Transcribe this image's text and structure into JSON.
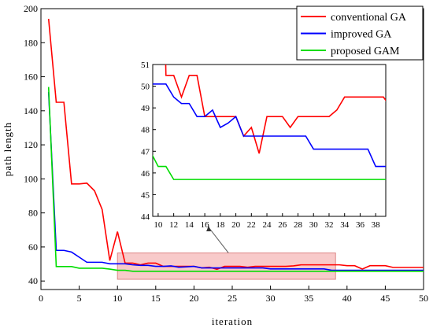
{
  "chart_data": [
    {
      "type": "line",
      "xlabel": "iteration",
      "ylabel": "path length",
      "xlim": [
        0,
        50
      ],
      "ylim": [
        35,
        200
      ],
      "xticks": [
        0,
        5,
        10,
        15,
        20,
        25,
        30,
        35,
        40,
        45,
        50
      ],
      "yticks": [
        40,
        60,
        80,
        100,
        120,
        140,
        160,
        180,
        200
      ],
      "legend": {
        "placement": "top-right",
        "entries": [
          "conventional GA",
          "improved GA",
          "proposed GAM"
        ]
      },
      "grid": false,
      "series": [
        {
          "name": "conventional GA",
          "color": "#ff0000",
          "x": [
            1,
            2,
            3,
            4,
            5,
            6,
            7,
            8,
            9,
            10,
            11,
            12,
            13,
            14,
            15,
            16,
            17,
            18,
            19,
            20,
            21,
            22,
            23,
            24,
            25,
            26,
            27,
            28,
            29,
            30,
            31,
            32,
            33,
            34,
            35,
            36,
            37,
            38,
            39,
            40,
            41,
            42,
            43,
            44,
            45,
            46,
            47,
            48,
            49,
            50
          ],
          "values": [
            194,
            145,
            145,
            97,
            97,
            97.5,
            93,
            82,
            52,
            69,
            50.5,
            50.5,
            49.5,
            50.5,
            50.5,
            48.6,
            48.6,
            48.6,
            48.6,
            48.6,
            47.7,
            48.1,
            46.9,
            48.6,
            48.6,
            48.6,
            48.1,
            48.6,
            48.6,
            48.6,
            48.6,
            48.6,
            48.9,
            49.5,
            49.5,
            49.5,
            49.5,
            49.5,
            49.5,
            49,
            49,
            47,
            49,
            49,
            49,
            48,
            48,
            48,
            48,
            48
          ]
        },
        {
          "name": "improved GA",
          "color": "#0000ff",
          "x": [
            1,
            2,
            3,
            4,
            5,
            6,
            7,
            8,
            9,
            10,
            11,
            12,
            13,
            14,
            15,
            16,
            17,
            18,
            19,
            20,
            21,
            22,
            23,
            24,
            25,
            26,
            27,
            28,
            29,
            30,
            31,
            32,
            33,
            34,
            35,
            36,
            37,
            38,
            39,
            40,
            41,
            42,
            43,
            44,
            45,
            46,
            47,
            48,
            49,
            50
          ],
          "values": [
            151,
            58,
            58,
            57,
            54,
            51,
            51,
            51,
            50.1,
            50.1,
            50.1,
            49.5,
            49.2,
            49.2,
            48.6,
            48.6,
            48.9,
            48.1,
            48.3,
            48.6,
            47.7,
            47.7,
            47.7,
            47.7,
            47.7,
            47.7,
            47.7,
            47.7,
            47.7,
            47.1,
            47.1,
            47.1,
            47.1,
            47.1,
            47.1,
            47.1,
            47.1,
            46.3,
            46.3,
            46.3,
            46.3,
            46.3,
            46.3,
            46.3,
            46.3,
            46.3,
            46.3,
            46.3,
            46.3,
            46.3
          ]
        },
        {
          "name": "proposed GAM",
          "color": "#00dd00",
          "x": [
            1,
            2,
            3,
            4,
            5,
            6,
            7,
            8,
            9,
            10,
            11,
            12,
            13,
            14,
            15,
            16,
            17,
            18,
            19,
            20,
            21,
            22,
            23,
            24,
            25,
            26,
            27,
            28,
            29,
            30,
            31,
            32,
            33,
            34,
            35,
            36,
            37,
            38,
            39,
            40,
            41,
            42,
            43,
            44,
            45,
            46,
            47,
            48,
            49,
            50
          ],
          "values": [
            154,
            48.5,
            48.5,
            48.5,
            47.5,
            47.5,
            47.5,
            47.5,
            47,
            46.3,
            46.3,
            45.7,
            45.7,
            45.7,
            45.7,
            45.7,
            45.7,
            45.7,
            45.7,
            45.7,
            45.7,
            45.7,
            45.7,
            45.7,
            45.7,
            45.7,
            45.7,
            45.7,
            45.7,
            45.7,
            45.7,
            45.7,
            45.7,
            45.7,
            45.7,
            45.7,
            45.7,
            45.7,
            45.7,
            45.7,
            45.7,
            45.7,
            45.7,
            45.7,
            45.7,
            45.7,
            45.7,
            45.7,
            45.7,
            45.7
          ]
        }
      ],
      "highlight_region": {
        "x": [
          10,
          38.5
        ],
        "y": [
          41,
          56.5
        ],
        "color": "#f4a6a6"
      }
    },
    {
      "type": "line",
      "role": "inset zoom",
      "xlim": [
        9.3,
        39.3
      ],
      "ylim": [
        44,
        51
      ],
      "xticks": [
        10,
        12,
        14,
        16,
        18,
        20,
        22,
        24,
        26,
        28,
        30,
        32,
        34,
        36,
        38
      ],
      "yticks": [
        44,
        45,
        46,
        47,
        48,
        49,
        50,
        51
      ]
    }
  ]
}
